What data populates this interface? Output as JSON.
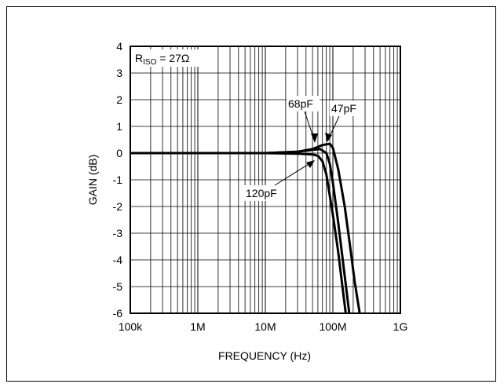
{
  "chart_data": {
    "type": "line",
    "xlabel": "FREQUENCY (Hz)",
    "ylabel": "GAIN (dB)",
    "xscale": "log",
    "xlim": [
      100000,
      1000000000
    ],
    "ylim": [
      -6,
      4
    ],
    "grid": true,
    "x_ticks": [
      {
        "value": 100000,
        "label": "100k"
      },
      {
        "value": 1000000,
        "label": "1M"
      },
      {
        "value": 10000000,
        "label": "10M"
      },
      {
        "value": 100000000,
        "label": "100M"
      },
      {
        "value": 1000000000,
        "label": "1G"
      }
    ],
    "y_ticks": [
      4,
      3,
      2,
      1,
      0,
      -1,
      -2,
      -3,
      -4,
      -5,
      -6
    ],
    "condition_label": {
      "prefix": "R",
      "subscript": "ISO",
      "suffix": " = 27Ω"
    },
    "series": [
      {
        "name": "47pF",
        "x": [
          100000,
          10000000,
          30000000,
          50000000,
          70000000,
          90000000,
          100000000,
          120000000,
          150000000,
          180000000,
          210000000,
          250000000
        ],
        "y": [
          0,
          0,
          0.05,
          0.15,
          0.3,
          0.35,
          0.2,
          -0.6,
          -2,
          -3.5,
          -4.8,
          -6
        ]
      },
      {
        "name": "68pF",
        "x": [
          100000,
          10000000,
          30000000,
          50000000,
          65000000,
          80000000,
          90000000,
          100000000,
          120000000,
          150000000,
          175000000
        ],
        "y": [
          0,
          0,
          0.05,
          0.12,
          0.15,
          0,
          -0.4,
          -1.1,
          -2.6,
          -4.6,
          -6
        ]
      },
      {
        "name": "120pF",
        "x": [
          100000,
          10000000,
          30000000,
          50000000,
          60000000,
          70000000,
          80000000,
          100000000,
          120000000,
          140000000,
          155000000
        ],
        "y": [
          0,
          0,
          -0.02,
          -0.05,
          -0.1,
          -0.3,
          -0.8,
          -2.3,
          -3.7,
          -5.1,
          -6
        ]
      }
    ],
    "annotations": [
      "68pF",
      "47pF",
      "120pF"
    ]
  }
}
